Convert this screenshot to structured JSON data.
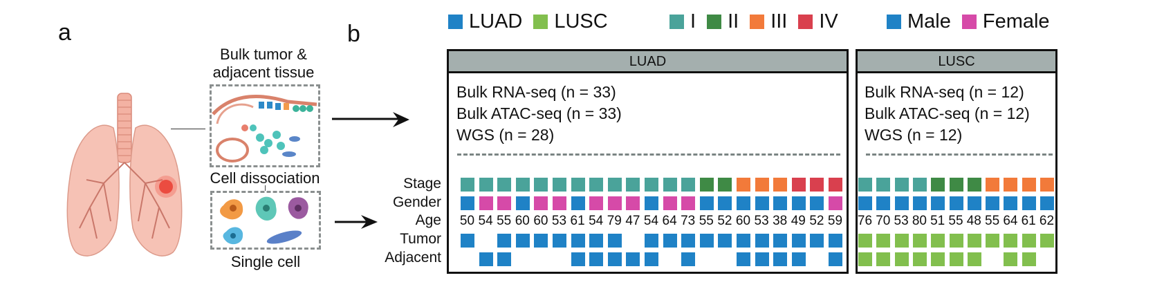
{
  "panel_a": {
    "letter": "a",
    "bulk_label_line1": "Bulk tumor &",
    "bulk_label_line2": "adjacent tissue",
    "dissociation_label": "Cell dissociation",
    "single_cell_label": "Single cell",
    "icons": [
      "lung-illustration",
      "tissue-section-illustration",
      "single-cells-illustration"
    ]
  },
  "panel_b": {
    "letter": "b",
    "legend": {
      "histology": [
        {
          "label": "LUAD",
          "color": "#1f82c6"
        },
        {
          "label": "LUSC",
          "color": "#82bf4e"
        }
      ],
      "stage": [
        {
          "label": "I",
          "color": "#4aa39a"
        },
        {
          "label": "II",
          "color": "#3f8a45"
        },
        {
          "label": "III",
          "color": "#f27a3a"
        },
        {
          "label": "IV",
          "color": "#d9404e"
        }
      ],
      "gender": [
        {
          "label": "Male",
          "color": "#1f82c6"
        },
        {
          "label": "Female",
          "color": "#d64aa8"
        }
      ]
    },
    "row_labels": [
      "Stage",
      "Gender",
      "Age",
      "Tumor",
      "Adjacent"
    ],
    "groups": [
      {
        "name": "LUAD",
        "assays": [
          "Bulk RNA-seq (n = 33)",
          "Bulk ATAC-seq (n = 33)",
          "WGS (n = 28)"
        ],
        "stage": [
          "I",
          "I",
          "I",
          "I",
          "I",
          "I",
          "I",
          "I",
          "I",
          "I",
          "I",
          "I",
          "I",
          "II",
          "II",
          "III",
          "III",
          "III",
          "IV",
          "IV",
          "IV"
        ],
        "gender": [
          "M",
          "F",
          "F",
          "M",
          "F",
          "F",
          "M",
          "F",
          "F",
          "F",
          "M",
          "F",
          "F",
          "M",
          "M",
          "M",
          "M",
          "M",
          "M",
          "M",
          "F"
        ],
        "age": [
          "50",
          "54",
          "55",
          "60",
          "60",
          "53",
          "61",
          "54",
          "79",
          "47",
          "54",
          "64",
          "73",
          "55",
          "52",
          "60",
          "53",
          "38",
          "49",
          "52",
          "59"
        ],
        "tumor": [
          1,
          0,
          1,
          1,
          1,
          1,
          1,
          1,
          1,
          0,
          1,
          1,
          1,
          1,
          1,
          1,
          1,
          1,
          1,
          1,
          1
        ],
        "adjacent": [
          0,
          1,
          1,
          0,
          0,
          0,
          1,
          1,
          1,
          1,
          1,
          0,
          1,
          0,
          0,
          1,
          1,
          1,
          1,
          0,
          1
        ]
      },
      {
        "name": "LUSC",
        "assays": [
          "Bulk RNA-seq (n = 12)",
          "Bulk ATAC-seq (n = 12)",
          "WGS (n = 12)"
        ],
        "stage": [
          "I",
          "I",
          "I",
          "I",
          "II",
          "II",
          "II",
          "III",
          "III",
          "III",
          "III"
        ],
        "gender": [
          "M",
          "M",
          "M",
          "M",
          "M",
          "M",
          "M",
          "M",
          "M",
          "M",
          "M"
        ],
        "age": [
          "76",
          "70",
          "53",
          "80",
          "51",
          "55",
          "48",
          "55",
          "64",
          "61",
          "62"
        ],
        "tumor": [
          1,
          1,
          1,
          1,
          1,
          1,
          1,
          1,
          1,
          1,
          1
        ],
        "adjacent": [
          1,
          1,
          1,
          1,
          1,
          1,
          1,
          0,
          1,
          1,
          0
        ]
      }
    ]
  }
}
